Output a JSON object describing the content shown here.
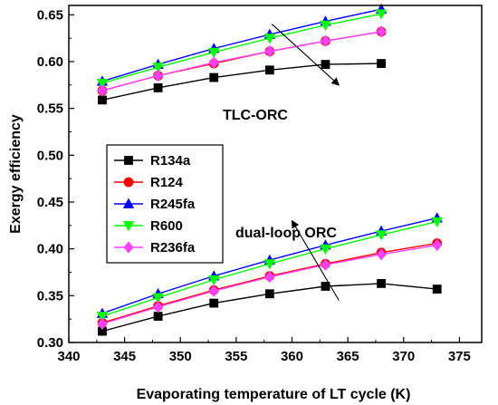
{
  "chart_data": {
    "type": "line",
    "xlabel": "Evaporating temperature of LT cycle (K)",
    "ylabel": "Exergy efficiency",
    "xlim": [
      340,
      377
    ],
    "ylim": [
      0.3,
      0.66
    ],
    "xticks": [
      340,
      345,
      350,
      355,
      360,
      365,
      370,
      375
    ],
    "yticks": [
      0.3,
      0.35,
      0.4,
      0.45,
      0.5,
      0.55,
      0.6,
      0.65
    ],
    "xtick_labels": [
      "340",
      "345",
      "350",
      "355",
      "360",
      "365",
      "370",
      "375"
    ],
    "ytick_labels": [
      "0.30",
      "0.35",
      "0.40",
      "0.45",
      "0.50",
      "0.55",
      "0.60",
      "0.65"
    ],
    "grid": false,
    "legend_placement": "center-left",
    "annotations": [
      {
        "text": "TLC-ORC"
      },
      {
        "text": "dual-loop ORC"
      }
    ],
    "series": [
      {
        "name": "R134a",
        "color": "#000000",
        "marker": "square",
        "group": "TLC-ORC",
        "x": [
          343,
          348,
          353,
          358,
          363,
          368
        ],
        "values": [
          0.559,
          0.572,
          0.583,
          0.591,
          0.597,
          0.598
        ]
      },
      {
        "name": "R124",
        "color": "#ff0000",
        "marker": "circle",
        "group": "TLC-ORC",
        "x": [
          343,
          348,
          353,
          358,
          363,
          368
        ],
        "values": [
          0.569,
          0.585,
          0.598,
          0.611,
          0.622,
          0.632
        ]
      },
      {
        "name": "R245fa",
        "color": "#0000ff",
        "marker": "triangle-up",
        "group": "TLC-ORC",
        "x": [
          343,
          348,
          353,
          358,
          363,
          368
        ],
        "values": [
          0.579,
          0.597,
          0.614,
          0.629,
          0.643,
          0.656
        ]
      },
      {
        "name": "R600",
        "color": "#00ff00",
        "marker": "triangle-down",
        "group": "TLC-ORC",
        "x": [
          343,
          348,
          353,
          358,
          363,
          368
        ],
        "values": [
          0.577,
          0.594,
          0.61,
          0.625,
          0.639,
          0.651
        ]
      },
      {
        "name": "R236fa",
        "color": "#ff40ff",
        "marker": "diamond",
        "group": "TLC-ORC",
        "x": [
          343,
          348,
          353,
          358,
          363,
          368
        ],
        "values": [
          0.569,
          0.585,
          0.599,
          0.611,
          0.622,
          0.632
        ]
      },
      {
        "name": "R134a",
        "color": "#000000",
        "marker": "square",
        "group": "dual-loop ORC",
        "x": [
          343,
          348,
          353,
          358,
          363,
          368,
          373
        ],
        "values": [
          0.312,
          0.328,
          0.342,
          0.352,
          0.36,
          0.363,
          0.357
        ]
      },
      {
        "name": "R124",
        "color": "#ff0000",
        "marker": "circle",
        "group": "dual-loop ORC",
        "x": [
          343,
          348,
          353,
          358,
          363,
          368,
          373
        ],
        "values": [
          0.321,
          0.339,
          0.356,
          0.371,
          0.384,
          0.396,
          0.406
        ]
      },
      {
        "name": "R245fa",
        "color": "#0000ff",
        "marker": "triangle-up",
        "group": "dual-loop ORC",
        "x": [
          343,
          348,
          353,
          358,
          363,
          368,
          373
        ],
        "values": [
          0.331,
          0.352,
          0.371,
          0.388,
          0.404,
          0.419,
          0.433
        ]
      },
      {
        "name": "R600",
        "color": "#00ff00",
        "marker": "triangle-down",
        "group": "dual-loop ORC",
        "x": [
          343,
          348,
          353,
          358,
          363,
          368,
          373
        ],
        "values": [
          0.328,
          0.348,
          0.367,
          0.384,
          0.4,
          0.415,
          0.429
        ]
      },
      {
        "name": "R236fa",
        "color": "#ff40ff",
        "marker": "diamond",
        "group": "dual-loop ORC",
        "x": [
          343,
          348,
          353,
          358,
          363,
          368,
          373
        ],
        "values": [
          0.32,
          0.338,
          0.355,
          0.37,
          0.383,
          0.394,
          0.404
        ]
      }
    ],
    "legend": [
      {
        "name": "R134a",
        "color": "#000000",
        "marker": "square"
      },
      {
        "name": "R124",
        "color": "#ff0000",
        "marker": "circle"
      },
      {
        "name": "R245fa",
        "color": "#0000ff",
        "marker": "triangle-up"
      },
      {
        "name": "R600",
        "color": "#00ff00",
        "marker": "triangle-down"
      },
      {
        "name": "R236fa",
        "color": "#ff40ff",
        "marker": "diamond"
      }
    ]
  }
}
